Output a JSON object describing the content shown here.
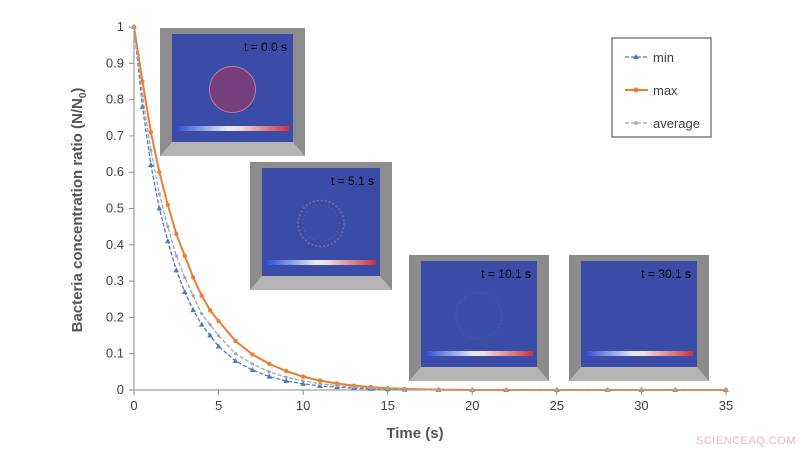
{
  "chart_data": {
    "type": "line",
    "title": "",
    "xlabel": "Time (s)",
    "ylabel": "Bacteria concentration ratio (N/N",
    "ylabel_sub": "0",
    "ylabel_close": ")",
    "xlim": [
      0,
      35
    ],
    "ylim": [
      0,
      1
    ],
    "x_ticks": [
      "0",
      "5",
      "10",
      "15",
      "20",
      "25",
      "30",
      "35"
    ],
    "y_ticks": [
      "0",
      "0.1",
      "0.2",
      "0.3",
      "0.4",
      "0.5",
      "0.6",
      "0.7",
      "0.8",
      "0.9",
      "1"
    ],
    "legend_position": "top-right",
    "series": [
      {
        "name": "min",
        "color": "#4f79b9",
        "marker": "triangle",
        "dash": true,
        "x": [
          0,
          0.5,
          1,
          1.5,
          2,
          2.5,
          3,
          3.5,
          4,
          4.5,
          5,
          6,
          7,
          8,
          9,
          10,
          11,
          12,
          13,
          14,
          15,
          16,
          18,
          20,
          22,
          25,
          28,
          30,
          32,
          35
        ],
        "y": [
          1.0,
          0.78,
          0.62,
          0.5,
          0.41,
          0.33,
          0.27,
          0.22,
          0.18,
          0.15,
          0.12,
          0.08,
          0.055,
          0.037,
          0.025,
          0.017,
          0.011,
          0.008,
          0.005,
          0.003,
          0.002,
          0.001,
          0.0,
          0.0,
          0.0,
          0.0,
          0.0,
          0.0,
          0.0,
          0.0
        ]
      },
      {
        "name": "max",
        "color": "#ed7d31",
        "marker": "circle",
        "dash": false,
        "x": [
          0,
          0.5,
          1,
          1.5,
          2,
          2.5,
          3,
          3.5,
          4,
          4.5,
          5,
          6,
          7,
          8,
          9,
          10,
          11,
          12,
          13,
          14,
          15,
          16,
          18,
          20,
          22,
          25,
          28,
          30,
          32,
          35
        ],
        "y": [
          1.0,
          0.85,
          0.71,
          0.6,
          0.51,
          0.43,
          0.37,
          0.31,
          0.26,
          0.22,
          0.19,
          0.135,
          0.098,
          0.072,
          0.052,
          0.037,
          0.026,
          0.018,
          0.012,
          0.008,
          0.005,
          0.003,
          0.001,
          0.0,
          0.0,
          0.0,
          0.0,
          0.0,
          0.0,
          0.0
        ]
      },
      {
        "name": "average",
        "color": "#a5a5a5",
        "marker": "dot",
        "dash": true,
        "x": [
          0,
          0.5,
          1,
          1.5,
          2,
          2.5,
          3,
          3.5,
          4,
          4.5,
          5,
          6,
          7,
          8,
          9,
          10,
          11,
          12,
          13,
          14,
          15,
          16,
          18,
          20,
          22,
          25,
          28,
          30,
          32,
          35
        ],
        "y": [
          1.0,
          0.81,
          0.66,
          0.54,
          0.45,
          0.37,
          0.31,
          0.26,
          0.21,
          0.18,
          0.15,
          0.1,
          0.072,
          0.05,
          0.035,
          0.025,
          0.017,
          0.012,
          0.008,
          0.005,
          0.003,
          0.002,
          0.0,
          0.0,
          0.0,
          0.0,
          0.0,
          0.0,
          0.0,
          0.0
        ]
      }
    ],
    "insets": [
      {
        "label": "t = 0.0 s",
        "ring": 1.0
      },
      {
        "label": "t = 5.1 s",
        "ring": 0.55
      },
      {
        "label": "t = 10.1 s",
        "ring": 0.15
      },
      {
        "label": "t = 30.1 s",
        "ring": 0.0
      }
    ]
  },
  "watermark": "SCIENCEAQ.COM",
  "colors": {
    "inset_blue": "#3b4ba8",
    "inset_frame": "#8c8c8c",
    "plot_axis": "#8a8a8a"
  }
}
